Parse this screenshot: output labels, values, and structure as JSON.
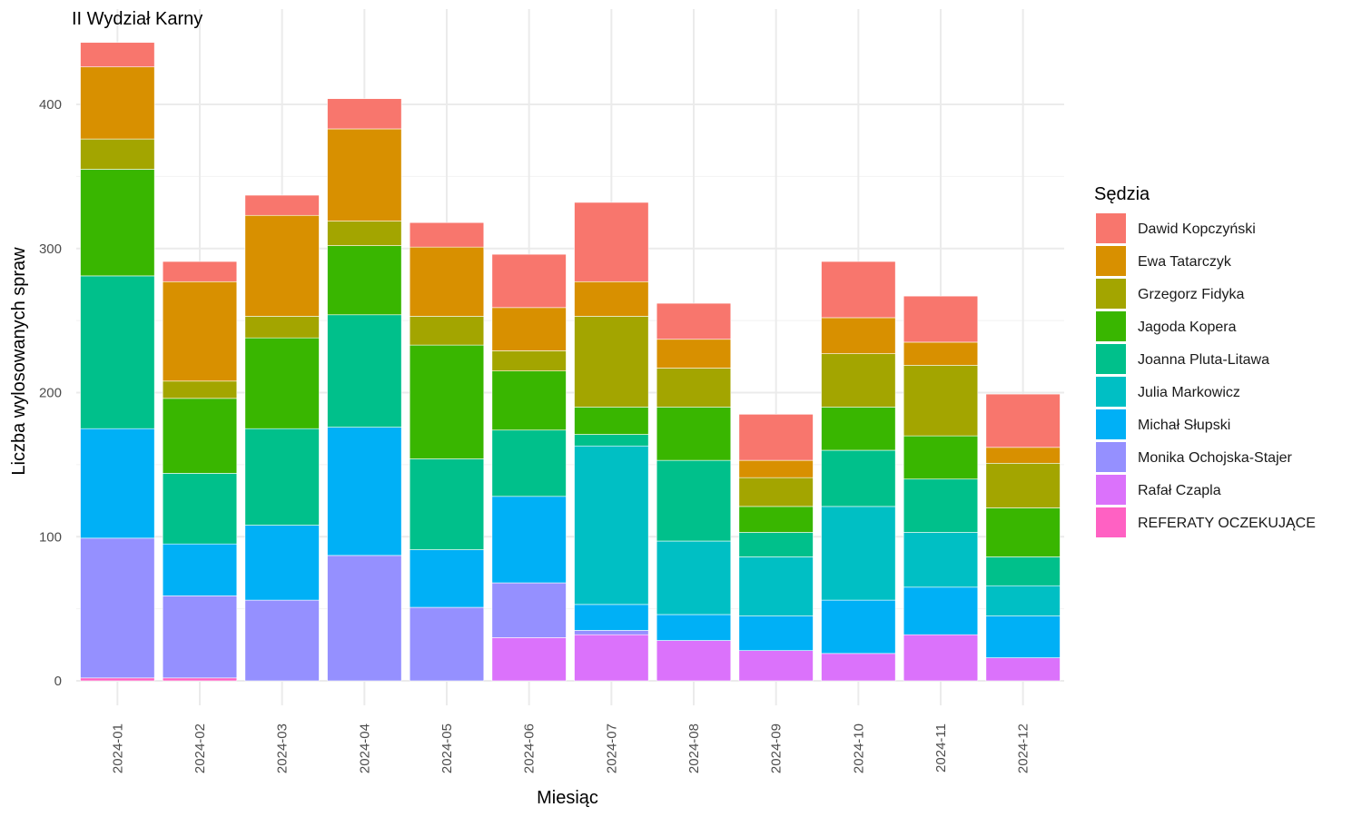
{
  "chart_data": {
    "type": "bar",
    "stacked": true,
    "title": "II Wydział Karny",
    "xlabel": "Miesiąc",
    "ylabel": "Liczba wylosowanych spraw",
    "ylim": [
      0,
      445
    ],
    "yticks": [
      0,
      100,
      200,
      300,
      400
    ],
    "grid": true,
    "legend_position": "right",
    "legend_title": "Sędzia",
    "categories": [
      "2024-01",
      "2024-02",
      "2024-03",
      "2024-04",
      "2024-05",
      "2024-06",
      "2024-07",
      "2024-08",
      "2024-09",
      "2024-10",
      "2024-11",
      "2024-12"
    ],
    "series": [
      {
        "name": "REFERATY OCZEKUJĄCE",
        "color": "#FF61C3",
        "values": [
          2,
          2,
          0,
          0,
          0,
          0,
          0,
          0,
          0,
          0,
          0,
          0
        ]
      },
      {
        "name": "Rafał Czapla",
        "color": "#DB72FB",
        "values": [
          0,
          0,
          0,
          0,
          0,
          30,
          32,
          28,
          21,
          19,
          32,
          16
        ]
      },
      {
        "name": "Monika Ochojska-Stajer",
        "color": "#9590FF",
        "values": [
          97,
          57,
          56,
          87,
          51,
          38,
          3,
          0,
          0,
          0,
          0,
          0
        ]
      },
      {
        "name": "Michał Słupski",
        "color": "#00B0F6",
        "values": [
          76,
          36,
          52,
          89,
          40,
          60,
          18,
          18,
          24,
          37,
          33,
          29
        ]
      },
      {
        "name": "Julia Markowicz",
        "color": "#00BFC4",
        "values": [
          0,
          0,
          0,
          0,
          0,
          0,
          110,
          51,
          41,
          65,
          38,
          21
        ]
      },
      {
        "name": "Joanna Pluta-Litawa",
        "color": "#00C08B",
        "values": [
          106,
          49,
          67,
          78,
          63,
          46,
          8,
          56,
          17,
          39,
          37,
          20
        ]
      },
      {
        "name": "Jagoda Kopera",
        "color": "#39B600",
        "values": [
          74,
          52,
          63,
          48,
          79,
          41,
          19,
          37,
          18,
          30,
          30,
          34
        ]
      },
      {
        "name": "Grzegorz Fidyka",
        "color": "#A3A500",
        "values": [
          21,
          12,
          15,
          17,
          20,
          14,
          63,
          27,
          20,
          37,
          49,
          31
        ]
      },
      {
        "name": "Ewa Tatarczyk",
        "color": "#D89000",
        "values": [
          50,
          69,
          70,
          64,
          48,
          30,
          24,
          20,
          12,
          25,
          16,
          11
        ]
      },
      {
        "name": "Dawid Kopczyński",
        "color": "#F8766D",
        "values": [
          17,
          14,
          14,
          21,
          17,
          37,
          55,
          25,
          32,
          39,
          32,
          37
        ]
      }
    ],
    "legend_order": [
      "Dawid Kopczyński",
      "Ewa Tatarczyk",
      "Grzegorz Fidyka",
      "Jagoda Kopera",
      "Joanna Pluta-Litawa",
      "Julia Markowicz",
      "Michał Słupski",
      "Monika Ochojska-Stajer",
      "Rafał Czapla",
      "REFERATY OCZEKUJĄCE"
    ]
  }
}
